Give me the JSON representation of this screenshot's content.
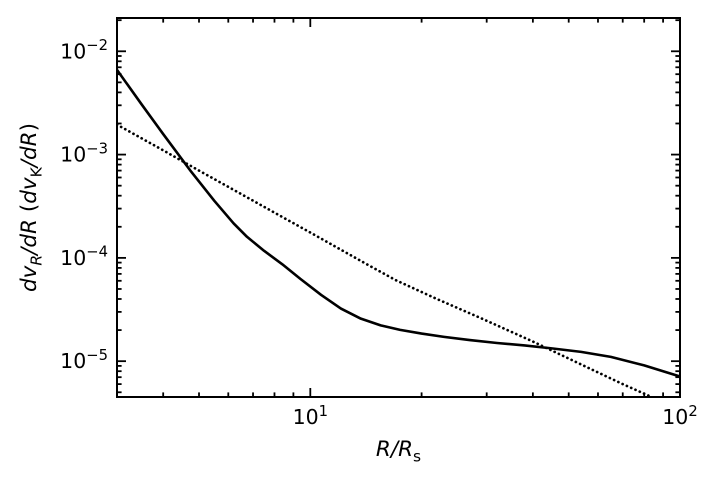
{
  "figure": {
    "background": "#ffffff",
    "foreground": "#000000"
  },
  "chart_data": {
    "type": "line",
    "title": "",
    "x_scale": "log",
    "y_scale": "log",
    "xlabel": "R/R_s",
    "ylabel": "dv_R/dR (dv_K/dR)",
    "xlabel_parts": [
      {
        "t": "R/R",
        "italic": true
      },
      {
        "t": "s",
        "sub": true
      }
    ],
    "ylabel_parts": [
      {
        "t": "dv",
        "italic": true
      },
      {
        "t": "R",
        "sub": true,
        "italic": true
      },
      {
        "t": "/dR",
        "italic": true
      },
      {
        "t": " ("
      },
      {
        "t": "dv",
        "italic": true
      },
      {
        "t": "K",
        "sub": true
      },
      {
        "t": "/dR",
        "italic": true
      },
      {
        "t": ")"
      }
    ],
    "xlim": [
      3,
      100
    ],
    "ylim": [
      4.5e-06,
      0.021
    ],
    "grid": false,
    "legend": null,
    "x_ticks": [
      {
        "value": 10,
        "base": "10",
        "exponent": "1"
      },
      {
        "value": 100,
        "base": "10",
        "exponent": "2"
      }
    ],
    "y_ticks": [
      {
        "value": 0.01,
        "base": "10",
        "exponent": "−2"
      },
      {
        "value": 0.001,
        "base": "10",
        "exponent": "−3"
      },
      {
        "value": 0.0001,
        "base": "10",
        "exponent": "−4"
      },
      {
        "value": 1e-05,
        "base": "10",
        "exponent": "−5"
      }
    ],
    "series": [
      {
        "name": "solid-line",
        "line_style": "solid",
        "color": "#000000",
        "points": [
          [
            3.0,
            0.0066
          ],
          [
            3.5,
            0.00305
          ],
          [
            4.0,
            0.00158
          ],
          [
            4.76,
            0.000684
          ],
          [
            5.5,
            0.000357
          ],
          [
            6.2,
            0.000216
          ],
          [
            6.74,
            0.00016
          ],
          [
            7.5,
            0.000117
          ],
          [
            8.4,
            8.67e-05
          ],
          [
            9.4,
            6.26e-05
          ],
          [
            10.7,
            4.38e-05
          ],
          [
            12.1,
            3.23e-05
          ],
          [
            13.7,
            2.58e-05
          ],
          [
            15.5,
            2.22e-05
          ],
          [
            17.5,
            2.01e-05
          ],
          [
            20,
            1.85e-05
          ],
          [
            23,
            1.72e-05
          ],
          [
            27,
            1.6e-05
          ],
          [
            32,
            1.5e-05
          ],
          [
            38,
            1.42e-05
          ],
          [
            45,
            1.33e-05
          ],
          [
            54,
            1.23e-05
          ],
          [
            65,
            1.1e-05
          ],
          [
            80,
            9.1e-06
          ],
          [
            100,
            7.1e-06
          ]
        ]
      },
      {
        "name": "dotted-line",
        "line_style": "dotted",
        "color": "#000000",
        "points": [
          [
            3,
            0.00195
          ],
          [
            4,
            0.0011
          ],
          [
            5,
            0.0007
          ],
          [
            6,
            0.000487
          ],
          [
            7,
            0.000358
          ],
          [
            8.5,
            0.000243
          ],
          [
            10,
            0.000176
          ],
          [
            12,
            0.000122
          ],
          [
            14,
            8.95e-05
          ],
          [
            17,
            6.1e-05
          ],
          [
            22,
            4e-05
          ],
          [
            29,
            2.6e-05
          ],
          [
            40,
            1.55e-05
          ],
          [
            54,
            9.3e-06
          ],
          [
            70,
            6e-06
          ],
          [
            85,
            4.4e-06
          ],
          [
            100,
            3.4e-06
          ]
        ]
      }
    ]
  }
}
